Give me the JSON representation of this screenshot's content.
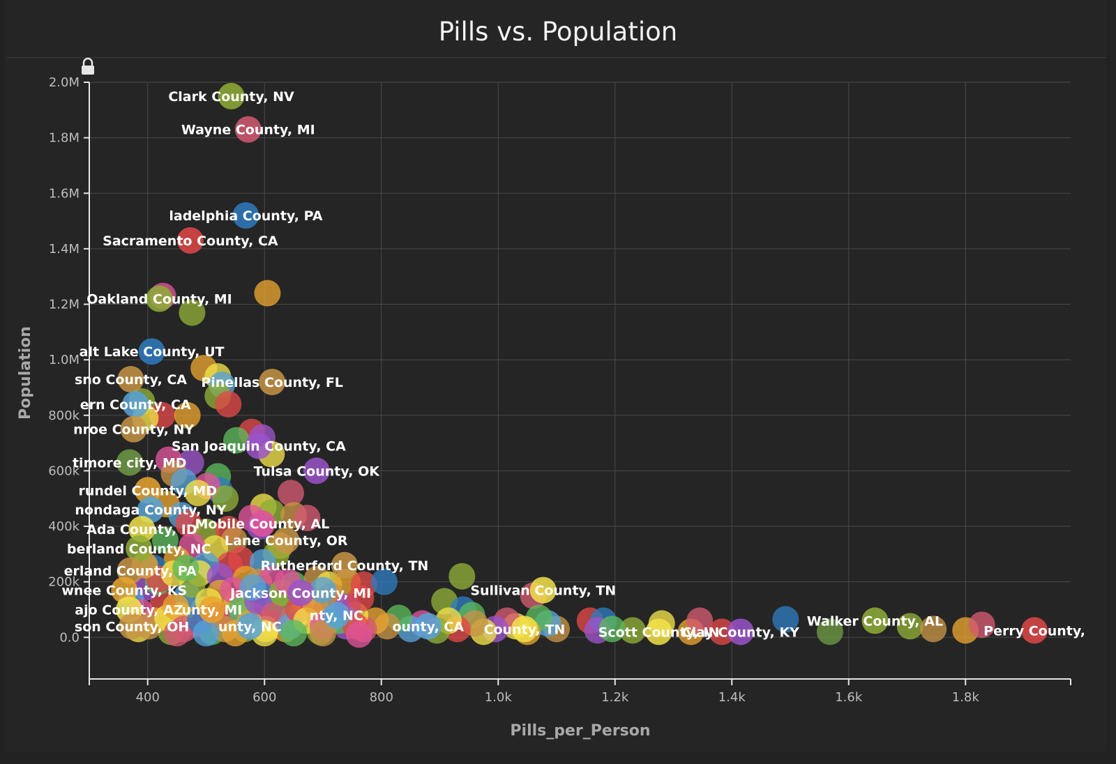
{
  "title": "Pills vs. Population",
  "colors": {
    "palette": [
      "#2f7bbf",
      "#e0559a",
      "#9a54c9",
      "#8fae37",
      "#e8a430",
      "#e04848",
      "#5cb85c",
      "#f2e24a",
      "#d35a72",
      "#c79445",
      "#57a3d8",
      "#6e9a44"
    ]
  },
  "chart_data": {
    "type": "scatter",
    "title": "Pills vs. Population",
    "xlabel": "Pills_per_Person",
    "ylabel": "Population",
    "xlim": [
      300,
      1980
    ],
    "ylim": [
      -150000,
      2000000
    ],
    "x_ticks": [
      400,
      600,
      800,
      1000,
      1200,
      1400,
      1600,
      1800
    ],
    "x_tick_labels": [
      "400",
      "600",
      "800",
      "1.0k",
      "1.2k",
      "1.4k",
      "1.6k",
      "1.8k"
    ],
    "y_ticks": [
      0,
      200000,
      400000,
      600000,
      800000,
      1000000,
      1200000,
      1400000,
      1600000,
      1800000,
      2000000
    ],
    "y_tick_labels": [
      "0.0",
      "200k",
      "400k",
      "600k",
      "800k",
      "1.0M",
      "1.2M",
      "1.4M",
      "1.6M",
      "1.8M",
      "2.0M"
    ],
    "grid": true,
    "labeled_points": [
      {
        "label": "Clark County, NV",
        "x": 543,
        "y": 1950000,
        "color": "#8fae37"
      },
      {
        "label": "Wayne County, MI",
        "x": 572,
        "y": 1830000,
        "color": "#d35a72"
      },
      {
        "label": "ladelphia County, PA",
        "x": 568,
        "y": 1520000,
        "color": "#2f7bbf"
      },
      {
        "label": "Sacramento County, CA",
        "x": 473,
        "y": 1430000,
        "color": "#e04848"
      },
      {
        "label": "Oakland County, MI",
        "x": 420,
        "y": 1220000,
        "color": "#8fae37"
      },
      {
        "label": "alt Lake County, UT",
        "x": 407,
        "y": 1030000,
        "color": "#2f7bbf"
      },
      {
        "label": "sno County, CA",
        "x": 371,
        "y": 930000,
        "color": "#c79445"
      },
      {
        "label": "Pinellas County, FL",
        "x": 613,
        "y": 920000,
        "color": "#c79445"
      },
      {
        "label": "ern County, CA",
        "x": 379,
        "y": 840000,
        "color": "#57a3d8"
      },
      {
        "label": "nroe County, NY",
        "x": 376,
        "y": 750000,
        "color": "#c79445"
      },
      {
        "label": "San Joaquin County, CA",
        "x": 590,
        "y": 690000,
        "color": "#9a54c9"
      },
      {
        "label": "timore city, MD",
        "x": 369,
        "y": 630000,
        "color": "#6e9a44"
      },
      {
        "label": "Tulsa County, OK",
        "x": 689,
        "y": 600000,
        "color": "#9a54c9"
      },
      {
        "label": "rundel County, MD",
        "x": 400,
        "y": 530000,
        "color": "#e8a430"
      },
      {
        "label": "nondaga County, NY",
        "x": 405,
        "y": 460000,
        "color": "#57a3d8"
      },
      {
        "label": "Mobile County, AL",
        "x": 596,
        "y": 410000,
        "color": "#e0559a"
      },
      {
        "label": "Ada County, ID",
        "x": 390,
        "y": 390000,
        "color": "#f2e24a"
      },
      {
        "label": "Lane County, OR",
        "x": 637,
        "y": 350000,
        "color": "#c79445"
      },
      {
        "label": "berland County, NC",
        "x": 385,
        "y": 320000,
        "color": "#8fae37"
      },
      {
        "label": "Rutherford County, TN",
        "x": 737,
        "y": 260000,
        "color": "#c79445"
      },
      {
        "label": "erland County, PA",
        "x": 370,
        "y": 240000,
        "color": "#c79445"
      },
      {
        "label": "Jackson County, MI",
        "x": 662,
        "y": 160000,
        "color": "#9a54c9"
      },
      {
        "label": "wnee County, KS",
        "x": 360,
        "y": 170000,
        "color": "#e8a430"
      },
      {
        "label": "Sullivan County, TN",
        "x": 1077,
        "y": 170000,
        "color": "#f2e24a"
      },
      {
        "label": "ajo County, AZ",
        "x": 368,
        "y": 100000,
        "color": "#f2e24a"
      },
      {
        "label": "unty, MI",
        "x": 510,
        "y": 100000,
        "color": "#e8a430"
      },
      {
        "label": "nty, NC",
        "x": 723,
        "y": 80000,
        "color": "#57a3d8"
      },
      {
        "label": "Walker County, AL",
        "x": 1645,
        "y": 60000,
        "color": "#8fae37"
      },
      {
        "label": "son County, OH",
        "x": 373,
        "y": 40000,
        "color": "#c79445"
      },
      {
        "label": "unty, NC",
        "x": 575,
        "y": 40000,
        "color": "#57a3d8"
      },
      {
        "label": "ounty, CA",
        "x": 880,
        "y": 40000,
        "color": "#57a3d8"
      },
      {
        "label": "County, TN",
        "x": 1045,
        "y": 30000,
        "color": "#f2e24a"
      },
      {
        "label": "Scott County, IN",
        "x": 1275,
        "y": 20000,
        "color": "#f2e24a"
      },
      {
        "label": "Clay County, KY",
        "x": 1415,
        "y": 20000,
        "color": "#9a54c9"
      },
      {
        "label": "Perry County,",
        "x": 1918,
        "y": 25000,
        "color": "#e04848"
      }
    ],
    "points": [
      {
        "x": 605,
        "y": 1240000,
        "color": "#e8a430"
      },
      {
        "x": 476,
        "y": 1170000,
        "color": "#8fae37"
      },
      {
        "x": 426,
        "y": 1230000,
        "color": "#e0559a"
      },
      {
        "x": 496,
        "y": 970000,
        "color": "#e8a430"
      },
      {
        "x": 520,
        "y": 940000,
        "color": "#f2e24a"
      },
      {
        "x": 527,
        "y": 910000,
        "color": "#57a3d8"
      },
      {
        "x": 520,
        "y": 870000,
        "color": "#8fae37"
      },
      {
        "x": 538,
        "y": 840000,
        "color": "#e04848"
      },
      {
        "x": 390,
        "y": 850000,
        "color": "#8fae37"
      },
      {
        "x": 425,
        "y": 800000,
        "color": "#e04848"
      },
      {
        "x": 468,
        "y": 800000,
        "color": "#e8a430"
      },
      {
        "x": 396,
        "y": 790000,
        "color": "#f2e24a"
      },
      {
        "x": 578,
        "y": 740000,
        "color": "#e04848"
      },
      {
        "x": 596,
        "y": 720000,
        "color": "#9a54c9"
      },
      {
        "x": 552,
        "y": 710000,
        "color": "#5cb85c"
      },
      {
        "x": 612,
        "y": 660000,
        "color": "#f2e24a"
      },
      {
        "x": 474,
        "y": 630000,
        "color": "#9a54c9"
      },
      {
        "x": 436,
        "y": 640000,
        "color": "#e0559a"
      },
      {
        "x": 445,
        "y": 590000,
        "color": "#c79445"
      },
      {
        "x": 520,
        "y": 580000,
        "color": "#5cb85c"
      },
      {
        "x": 462,
        "y": 560000,
        "color": "#57a3d8"
      },
      {
        "x": 523,
        "y": 530000,
        "color": "#2f7bbf"
      },
      {
        "x": 502,
        "y": 545000,
        "color": "#e0559a"
      },
      {
        "x": 486,
        "y": 520000,
        "color": "#f2e24a"
      },
      {
        "x": 533,
        "y": 500000,
        "color": "#8fae37"
      },
      {
        "x": 645,
        "y": 520000,
        "color": "#d35a72"
      },
      {
        "x": 598,
        "y": 470000,
        "color": "#f2e24a"
      },
      {
        "x": 612,
        "y": 450000,
        "color": "#8fae37"
      },
      {
        "x": 650,
        "y": 440000,
        "color": "#c79445"
      },
      {
        "x": 673,
        "y": 430000,
        "color": "#d35a72"
      },
      {
        "x": 578,
        "y": 430000,
        "color": "#e0559a"
      },
      {
        "x": 592,
        "y": 400000,
        "color": "#9a54c9"
      },
      {
        "x": 432,
        "y": 480000,
        "color": "#e8a430"
      },
      {
        "x": 458,
        "y": 440000,
        "color": "#57a3d8"
      },
      {
        "x": 470,
        "y": 410000,
        "color": "#e04848"
      },
      {
        "x": 500,
        "y": 380000,
        "color": "#8fae37"
      },
      {
        "x": 538,
        "y": 390000,
        "color": "#e04848"
      },
      {
        "x": 548,
        "y": 350000,
        "color": "#c79445"
      },
      {
        "x": 515,
        "y": 320000,
        "color": "#f2e24a"
      },
      {
        "x": 476,
        "y": 330000,
        "color": "#e0559a"
      },
      {
        "x": 430,
        "y": 350000,
        "color": "#5cb85c"
      },
      {
        "x": 627,
        "y": 330000,
        "color": "#e8a430"
      },
      {
        "x": 620,
        "y": 300000,
        "color": "#8fae37"
      },
      {
        "x": 560,
        "y": 280000,
        "color": "#e04848"
      },
      {
        "x": 597,
        "y": 270000,
        "color": "#57a3d8"
      },
      {
        "x": 540,
        "y": 260000,
        "color": "#e04848"
      },
      {
        "x": 500,
        "y": 260000,
        "color": "#57a3d8"
      },
      {
        "x": 450,
        "y": 280000,
        "color": "#e8a430"
      },
      {
        "x": 410,
        "y": 250000,
        "color": "#2f7bbf"
      },
      {
        "x": 488,
        "y": 230000,
        "color": "#f2e24a"
      },
      {
        "x": 524,
        "y": 220000,
        "color": "#9a54c9"
      },
      {
        "x": 568,
        "y": 210000,
        "color": "#e8a430"
      },
      {
        "x": 590,
        "y": 200000,
        "color": "#c79445"
      },
      {
        "x": 612,
        "y": 210000,
        "color": "#e0559a"
      },
      {
        "x": 650,
        "y": 190000,
        "color": "#5cb85c"
      },
      {
        "x": 690,
        "y": 210000,
        "color": "#c79445"
      },
      {
        "x": 710,
        "y": 190000,
        "color": "#f2e24a"
      },
      {
        "x": 742,
        "y": 200000,
        "color": "#e8a430"
      },
      {
        "x": 770,
        "y": 190000,
        "color": "#e04848"
      },
      {
        "x": 805,
        "y": 200000,
        "color": "#2f7bbf"
      },
      {
        "x": 938,
        "y": 220000,
        "color": "#8fae37"
      },
      {
        "x": 908,
        "y": 130000,
        "color": "#8fae37"
      },
      {
        "x": 940,
        "y": 100000,
        "color": "#2f7bbf"
      },
      {
        "x": 955,
        "y": 80000,
        "color": "#5cb85c"
      },
      {
        "x": 1060,
        "y": 150000,
        "color": "#d35a72"
      },
      {
        "x": 1157,
        "y": 60000,
        "color": "#e04848"
      },
      {
        "x": 1180,
        "y": 60000,
        "color": "#2f7bbf"
      },
      {
        "x": 1230,
        "y": 25000,
        "color": "#8fae37"
      },
      {
        "x": 1280,
        "y": 50000,
        "color": "#f2e24a"
      },
      {
        "x": 1330,
        "y": 20000,
        "color": "#e8a430"
      },
      {
        "x": 1345,
        "y": 60000,
        "color": "#d35a72"
      },
      {
        "x": 1383,
        "y": 20000,
        "color": "#e04848"
      },
      {
        "x": 1492,
        "y": 65000,
        "color": "#2f7bbf"
      },
      {
        "x": 1568,
        "y": 20000,
        "color": "#6e9a44"
      },
      {
        "x": 1705,
        "y": 40000,
        "color": "#8fae37"
      },
      {
        "x": 1745,
        "y": 30000,
        "color": "#c79445"
      },
      {
        "x": 1800,
        "y": 25000,
        "color": "#e8a430"
      },
      {
        "x": 1828,
        "y": 45000,
        "color": "#d35a72"
      },
      {
        "x": 1170,
        "y": 25000,
        "color": "#9a54c9"
      },
      {
        "x": 1195,
        "y": 30000,
        "color": "#5cb85c"
      },
      {
        "x": 1100,
        "y": 30000,
        "color": "#c79445"
      },
      {
        "x": 1085,
        "y": 50000,
        "color": "#57a3d8"
      },
      {
        "x": 1070,
        "y": 70000,
        "color": "#5cb85c"
      },
      {
        "x": 1050,
        "y": 20000,
        "color": "#e8a430"
      },
      {
        "x": 1030,
        "y": 40000,
        "color": "#f2e24a"
      },
      {
        "x": 1015,
        "y": 60000,
        "color": "#d35a72"
      },
      {
        "x": 995,
        "y": 30000,
        "color": "#9a54c9"
      },
      {
        "x": 975,
        "y": 20000,
        "color": "#f2e24a"
      },
      {
        "x": 960,
        "y": 50000,
        "color": "#c79445"
      },
      {
        "x": 930,
        "y": 30000,
        "color": "#e04848"
      },
      {
        "x": 915,
        "y": 60000,
        "color": "#f2e24a"
      },
      {
        "x": 895,
        "y": 25000,
        "color": "#8fae37"
      },
      {
        "x": 870,
        "y": 50000,
        "color": "#e0559a"
      },
      {
        "x": 850,
        "y": 30000,
        "color": "#57a3d8"
      },
      {
        "x": 830,
        "y": 70000,
        "color": "#5cb85c"
      },
      {
        "x": 810,
        "y": 40000,
        "color": "#c79445"
      },
      {
        "x": 790,
        "y": 60000,
        "color": "#e8a430"
      },
      {
        "x": 770,
        "y": 30000,
        "color": "#d35a72"
      },
      {
        "x": 755,
        "y": 80000,
        "color": "#f2e24a"
      },
      {
        "x": 740,
        "y": 40000,
        "color": "#9a54c9"
      },
      {
        "x": 725,
        "y": 110000,
        "color": "#e04848"
      },
      {
        "x": 710,
        "y": 60000,
        "color": "#57a3d8"
      },
      {
        "x": 695,
        "y": 20000,
        "color": "#8fae37"
      },
      {
        "x": 680,
        "y": 90000,
        "color": "#e0559a"
      },
      {
        "x": 665,
        "y": 140000,
        "color": "#c79445"
      },
      {
        "x": 650,
        "y": 70000,
        "color": "#f2e24a"
      },
      {
        "x": 636,
        "y": 30000,
        "color": "#e8a430"
      },
      {
        "x": 622,
        "y": 110000,
        "color": "#5cb85c"
      },
      {
        "x": 608,
        "y": 50000,
        "color": "#e04848"
      },
      {
        "x": 595,
        "y": 150000,
        "color": "#2f7bbf"
      },
      {
        "x": 580,
        "y": 80000,
        "color": "#d35a72"
      },
      {
        "x": 566,
        "y": 30000,
        "color": "#8fae37"
      },
      {
        "x": 552,
        "y": 120000,
        "color": "#f2e24a"
      },
      {
        "x": 538,
        "y": 60000,
        "color": "#9a54c9"
      },
      {
        "x": 524,
        "y": 160000,
        "color": "#e8a430"
      },
      {
        "x": 510,
        "y": 20000,
        "color": "#5cb85c"
      },
      {
        "x": 496,
        "y": 100000,
        "color": "#c79445"
      },
      {
        "x": 482,
        "y": 50000,
        "color": "#e0559a"
      },
      {
        "x": 468,
        "y": 150000,
        "color": "#57a3d8"
      },
      {
        "x": 454,
        "y": 80000,
        "color": "#f2e24a"
      },
      {
        "x": 440,
        "y": 20000,
        "color": "#8fae37"
      },
      {
        "x": 426,
        "y": 120000,
        "color": "#e04848"
      },
      {
        "x": 412,
        "y": 60000,
        "color": "#e8a430"
      },
      {
        "x": 398,
        "y": 180000,
        "color": "#9a54c9"
      },
      {
        "x": 384,
        "y": 30000,
        "color": "#f2e24a"
      },
      {
        "x": 372,
        "y": 130000,
        "color": "#57a3d8"
      },
      {
        "x": 388,
        "y": 90000,
        "color": "#e0559a"
      },
      {
        "x": 402,
        "y": 40000,
        "color": "#c79445"
      },
      {
        "x": 418,
        "y": 200000,
        "color": "#5cb85c"
      },
      {
        "x": 434,
        "y": 70000,
        "color": "#f2e24a"
      },
      {
        "x": 448,
        "y": 110000,
        "color": "#e8a430"
      },
      {
        "x": 462,
        "y": 30000,
        "color": "#d35a72"
      },
      {
        "x": 476,
        "y": 190000,
        "color": "#8fae37"
      },
      {
        "x": 490,
        "y": 60000,
        "color": "#2f7bbf"
      },
      {
        "x": 504,
        "y": 130000,
        "color": "#f2e24a"
      },
      {
        "x": 518,
        "y": 80000,
        "color": "#e04848"
      },
      {
        "x": 532,
        "y": 30000,
        "color": "#c79445"
      },
      {
        "x": 546,
        "y": 170000,
        "color": "#e0559a"
      },
      {
        "x": 560,
        "y": 100000,
        "color": "#5cb85c"
      },
      {
        "x": 574,
        "y": 50000,
        "color": "#e8a430"
      },
      {
        "x": 588,
        "y": 130000,
        "color": "#9a54c9"
      },
      {
        "x": 602,
        "y": 30000,
        "color": "#f2e24a"
      },
      {
        "x": 616,
        "y": 80000,
        "color": "#d35a72"
      },
      {
        "x": 630,
        "y": 160000,
        "color": "#8fae37"
      },
      {
        "x": 644,
        "y": 40000,
        "color": "#57a3d8"
      },
      {
        "x": 658,
        "y": 100000,
        "color": "#e04848"
      },
      {
        "x": 672,
        "y": 60000,
        "color": "#f2e24a"
      },
      {
        "x": 686,
        "y": 130000,
        "color": "#e8a430"
      },
      {
        "x": 700,
        "y": 40000,
        "color": "#e0559a"
      },
      {
        "x": 714,
        "y": 150000,
        "color": "#c79445"
      },
      {
        "x": 728,
        "y": 60000,
        "color": "#5cb85c"
      },
      {
        "x": 742,
        "y": 110000,
        "color": "#9a54c9"
      },
      {
        "x": 756,
        "y": 40000,
        "color": "#e04848"
      },
      {
        "x": 762,
        "y": 10000,
        "color": "#e0559a"
      },
      {
        "x": 700,
        "y": 15000,
        "color": "#c79445"
      },
      {
        "x": 650,
        "y": 15000,
        "color": "#5cb85c"
      },
      {
        "x": 600,
        "y": 15000,
        "color": "#f2e24a"
      },
      {
        "x": 550,
        "y": 15000,
        "color": "#e8a430"
      },
      {
        "x": 500,
        "y": 15000,
        "color": "#57a3d8"
      },
      {
        "x": 450,
        "y": 15000,
        "color": "#d35a72"
      },
      {
        "x": 420,
        "y": 210000,
        "color": "#e04848"
      },
      {
        "x": 445,
        "y": 230000,
        "color": "#f2e24a"
      },
      {
        "x": 465,
        "y": 250000,
        "color": "#5cb85c"
      },
      {
        "x": 395,
        "y": 260000,
        "color": "#e8a430"
      },
      {
        "x": 580,
        "y": 180000,
        "color": "#57a3d8"
      },
      {
        "x": 640,
        "y": 200000,
        "color": "#e0559a"
      },
      {
        "x": 700,
        "y": 170000,
        "color": "#57a3d8"
      },
      {
        "x": 765,
        "y": 140000,
        "color": "#e04848"
      }
    ]
  }
}
